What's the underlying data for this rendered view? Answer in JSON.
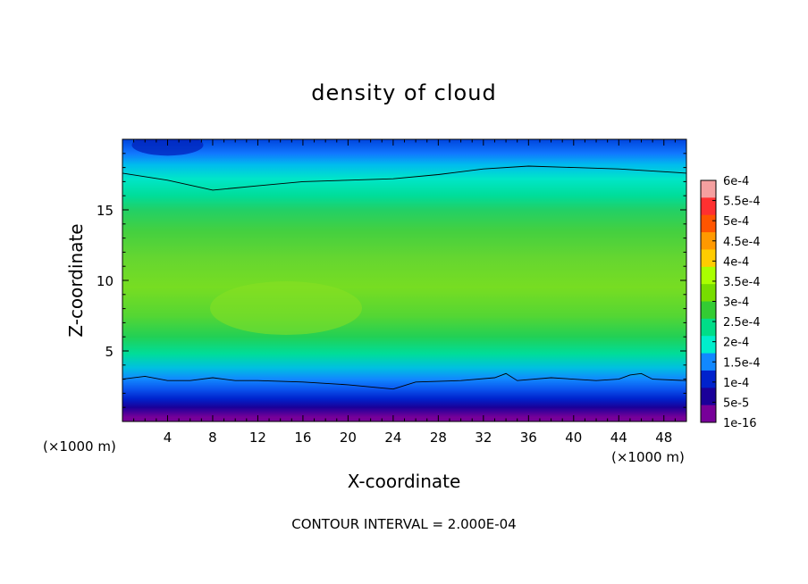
{
  "chart_data": {
    "type": "heatmap",
    "title": "density of cloud",
    "xlabel": "X-coordinate",
    "ylabel": "Z-coordinate",
    "x_unit_left": "(×1000 m)",
    "x_unit_right": "(×1000 m)",
    "xlim": [
      0,
      50
    ],
    "ylim": [
      0,
      20
    ],
    "x_ticks": [
      4,
      8,
      12,
      16,
      20,
      24,
      28,
      32,
      36,
      40,
      44,
      48
    ],
    "y_ticks": [
      5,
      10,
      15
    ],
    "footer": "CONTOUR INTERVAL = 2.000E-04",
    "colorbar": {
      "labels": [
        "6e-4",
        "5.5e-4",
        "5e-4",
        "4.5e-4",
        "4e-4",
        "3.5e-4",
        "3e-4",
        "2.5e-4",
        "2e-4",
        "1.5e-4",
        "1e-4",
        "5e-5",
        "1e-16"
      ],
      "levels": [
        0.0006,
        0.00055,
        0.0005,
        0.00045,
        0.0004,
        0.00035,
        0.0003,
        0.00025,
        0.0002,
        0.00015,
        0.0001,
        5e-05,
        1e-16
      ],
      "colors": [
        "#f5a0a0",
        "#ff3030",
        "#ff5500",
        "#ff9900",
        "#ffcc00",
        "#aaff00",
        "#77dd00",
        "#33cc33",
        "#00dd88",
        "#00eecc",
        "#1188ff",
        "#0022cc",
        "#1a0099",
        "#770099"
      ]
    },
    "bands": [
      {
        "z": 0.3,
        "color": "#770099"
      },
      {
        "z": 1.0,
        "color": "#1a0099"
      },
      {
        "z": 1.6,
        "color": "#0022cc"
      },
      {
        "z": 2.3,
        "color": "#0b55ee"
      },
      {
        "z": 3.0,
        "color": "#1188ff"
      },
      {
        "z": 3.8,
        "color": "#00c0e0"
      },
      {
        "z": 4.8,
        "color": "#00dd99"
      },
      {
        "z": 6.0,
        "color": "#22d055"
      },
      {
        "z": 7.5,
        "color": "#55d633"
      },
      {
        "z": 9.5,
        "color": "#77dd22"
      },
      {
        "z": 11.5,
        "color": "#66d630"
      },
      {
        "z": 13.5,
        "color": "#44d040"
      },
      {
        "z": 15.0,
        "color": "#22d066"
      },
      {
        "z": 16.0,
        "color": "#00dd99"
      },
      {
        "z": 17.2,
        "color": "#00e6c8"
      },
      {
        "z": 18.2,
        "color": "#00bbee"
      },
      {
        "z": 19.0,
        "color": "#1177ff"
      },
      {
        "z": 20.0,
        "color": "#0044dd"
      }
    ],
    "contour_upper": [
      [
        0,
        17.6
      ],
      [
        4,
        17.1
      ],
      [
        8,
        16.4
      ],
      [
        12,
        16.7
      ],
      [
        16,
        17.0
      ],
      [
        20,
        17.1
      ],
      [
        24,
        17.2
      ],
      [
        28,
        17.5
      ],
      [
        32,
        17.9
      ],
      [
        36,
        18.1
      ],
      [
        40,
        18.0
      ],
      [
        44,
        17.9
      ],
      [
        48,
        17.7
      ],
      [
        50,
        17.6
      ]
    ],
    "contour_lower": [
      [
        0,
        3.0
      ],
      [
        2,
        3.2
      ],
      [
        4,
        2.9
      ],
      [
        6,
        2.9
      ],
      [
        8,
        3.1
      ],
      [
        10,
        2.9
      ],
      [
        12,
        2.9
      ],
      [
        16,
        2.8
      ],
      [
        20,
        2.6
      ],
      [
        24,
        2.3
      ],
      [
        26,
        2.8
      ],
      [
        30,
        2.9
      ],
      [
        33,
        3.1
      ],
      [
        34,
        3.4
      ],
      [
        35,
        2.9
      ],
      [
        38,
        3.1
      ],
      [
        42,
        2.9
      ],
      [
        44,
        3.0
      ],
      [
        45,
        3.3
      ],
      [
        46,
        3.4
      ],
      [
        47,
        3.0
      ],
      [
        50,
        2.9
      ]
    ],
    "dark_top_spot": {
      "x": 4,
      "z": 19.6
    }
  }
}
